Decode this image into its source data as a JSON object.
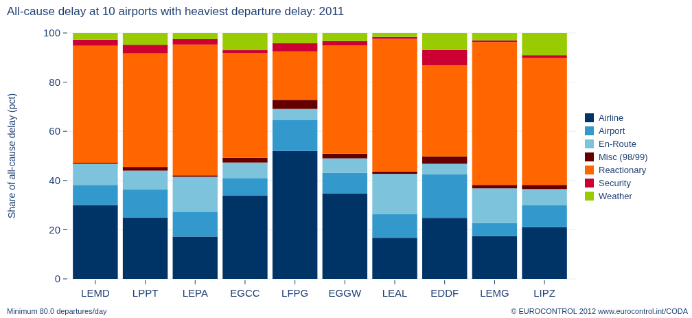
{
  "chart_data": {
    "type": "bar",
    "stacked": true,
    "title": "All-cause delay at 10 airports with heaviest departure delay: 2011",
    "ylabel": "Share of all-cause delay (pct)",
    "categories": [
      "LEMD",
      "LPPT",
      "LEPA",
      "EGCC",
      "LFPG",
      "EGGW",
      "LEAL",
      "EDDF",
      "LEMG",
      "LIPZ"
    ],
    "series": [
      {
        "name": "Airline",
        "color": "#003366",
        "values": [
          30,
          25,
          17.2,
          33.8,
          52,
          34.8,
          16.7,
          24.8,
          17.4,
          21
        ]
      },
      {
        "name": "Airport",
        "color": "#3399cc",
        "values": [
          8.2,
          11.3,
          10.1,
          7.2,
          12.7,
          8.3,
          9.7,
          17.7,
          5.3,
          8.9
        ]
      },
      {
        "name": "En-Route",
        "color": "#7ec3dc",
        "values": [
          8.6,
          7.7,
          14.2,
          6.3,
          4.4,
          5.9,
          16.3,
          4.3,
          14.1,
          6.6
        ]
      },
      {
        "name": "Misc (98/99)",
        "color": "#660000",
        "values": [
          0.4,
          1.5,
          0.6,
          1.9,
          3.7,
          1.9,
          0.9,
          3,
          1.4,
          1.7
        ]
      },
      {
        "name": "Reactionary",
        "color": "#ff6600",
        "values": [
          47.6,
          46.2,
          53.2,
          42.6,
          19.7,
          44,
          54,
          37,
          58.1,
          51.6
        ]
      },
      {
        "name": "Security",
        "color": "#cc0033",
        "values": [
          2.5,
          3.5,
          2.2,
          1.2,
          3.3,
          1.8,
          0.8,
          6.3,
          0.7,
          1.2
        ]
      },
      {
        "name": "Weather",
        "color": "#99cc00",
        "values": [
          2.7,
          4.8,
          2.5,
          7,
          4.2,
          3.3,
          1.6,
          6.9,
          3,
          9
        ]
      }
    ],
    "ylim": [
      0,
      100
    ],
    "yticks": [
      0,
      20,
      40,
      60,
      80,
      100
    ],
    "grid": "y",
    "legend": "right",
    "annotations": [
      "Minimum 80.0 departures/day",
      "© EUROCONTROL 2012 www.eurocontrol.int/CODA"
    ]
  }
}
